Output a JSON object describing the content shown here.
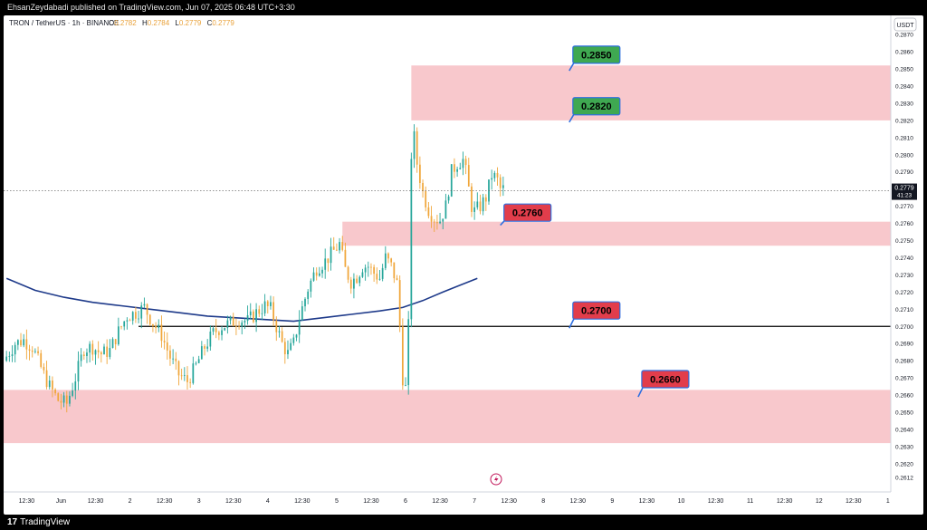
{
  "header": {
    "published_by": "EhsanZeydabadi published on TradingView.com, Jun 07, 2025 06:48 UTC+3:30"
  },
  "footer": {
    "brand": "TradingView"
  },
  "legend": {
    "symbol": "TRON / TetherUS · 1h · BINANCE",
    "ohlc": [
      {
        "key": "O",
        "value": "0.2782"
      },
      {
        "key": "H",
        "value": "0.2784"
      },
      {
        "key": "L",
        "value": "0.2779"
      },
      {
        "key": "C",
        "value": "0.2779"
      }
    ]
  },
  "colors": {
    "up": "#26a69a",
    "down": "#f0a63a",
    "ma": "#1e3a8a",
    "zone": "#f8c8cc",
    "green_label": "#3fa851",
    "red_label": "#e23d4b",
    "arrow": "#2f6fe0",
    "line": "#000000"
  },
  "chart_data": {
    "type": "candlestick",
    "currency": "USDT",
    "current_price": "0.2779",
    "countdown": "41:23",
    "ylim": [
      0.2612,
      0.2878
    ],
    "y_ticks": [
      "0.2870",
      "0.2860",
      "0.2850",
      "0.2840",
      "0.2830",
      "0.2820",
      "0.2810",
      "0.2800",
      "0.2790",
      "0.2780",
      "0.2770",
      "0.2760",
      "0.2750",
      "0.2740",
      "0.2730",
      "0.2720",
      "0.2710",
      "0.2700",
      "0.2690",
      "0.2680",
      "0.2670",
      "0.2660",
      "0.2650",
      "0.2640",
      "0.2630",
      "0.2620",
      "0.2612"
    ],
    "x_ticks": [
      {
        "label": "12:30",
        "slot": 7
      },
      {
        "label": "Jun",
        "slot": 19
      },
      {
        "label": "12:30",
        "slot": 31
      },
      {
        "label": "2",
        "slot": 43
      },
      {
        "label": "12:30",
        "slot": 55
      },
      {
        "label": "3",
        "slot": 67
      },
      {
        "label": "12:30",
        "slot": 79
      },
      {
        "label": "4",
        "slot": 91
      },
      {
        "label": "12:30",
        "slot": 103
      },
      {
        "label": "5",
        "slot": 115
      },
      {
        "label": "12:30",
        "slot": 127
      },
      {
        "label": "6",
        "slot": 139
      },
      {
        "label": "12:30",
        "slot": 151
      },
      {
        "label": "7",
        "slot": 163
      },
      {
        "label": "12:30",
        "slot": 175
      },
      {
        "label": "8",
        "slot": 187
      },
      {
        "label": "12:30",
        "slot": 199
      },
      {
        "label": "9",
        "slot": 211
      },
      {
        "label": "12:30",
        "slot": 223
      },
      {
        "label": "10",
        "slot": 235
      },
      {
        "label": "12:30",
        "slot": 247
      },
      {
        "label": "11",
        "slot": 259
      },
      {
        "label": "12:30",
        "slot": 271
      },
      {
        "label": "12",
        "slot": 283
      },
      {
        "label": "12:30",
        "slot": 295
      },
      {
        "label": "1",
        "slot": 307
      }
    ],
    "slot_range": [
      -1,
      308
    ],
    "zones": [
      {
        "name": "top-resistance-zone",
        "from": 0.282,
        "to": 0.2852,
        "start_slot": 141,
        "end_slot": 308
      },
      {
        "name": "mid-zone",
        "from": 0.2747,
        "to": 0.2761,
        "start_slot": 117,
        "end_slot": 308
      },
      {
        "name": "bottom-support-zone",
        "from": 0.2632,
        "to": 0.2663,
        "start_slot": -1,
        "end_slot": 308
      }
    ],
    "levels": [
      {
        "name": "support-line-0-2700",
        "value": 0.27,
        "start_slot": 46,
        "end_slot": 308
      }
    ],
    "labels": [
      {
        "text": "0.2850",
        "color": "green",
        "price": 0.285,
        "slot": 196,
        "label_price": 0.2858
      },
      {
        "text": "0.2820",
        "color": "green",
        "price": 0.282,
        "slot": 196,
        "label_price": 0.2828
      },
      {
        "text": "0.2760",
        "color": "red",
        "price": 0.276,
        "slot": 172,
        "label_price": 0.2766
      },
      {
        "text": "0.2700",
        "color": "red",
        "price": 0.27,
        "slot": 196,
        "label_price": 0.2709
      },
      {
        "text": "0.2660",
        "color": "red",
        "price": 0.266,
        "slot": 220,
        "label_price": 0.2669
      }
    ],
    "moving_average": [
      {
        "slot": 0,
        "value": 0.2728
      },
      {
        "slot": 10,
        "value": 0.2721
      },
      {
        "slot": 20,
        "value": 0.2717
      },
      {
        "slot": 30,
        "value": 0.2714
      },
      {
        "slot": 40,
        "value": 0.2712
      },
      {
        "slot": 50,
        "value": 0.271
      },
      {
        "slot": 60,
        "value": 0.2708
      },
      {
        "slot": 70,
        "value": 0.2706
      },
      {
        "slot": 80,
        "value": 0.2705
      },
      {
        "slot": 90,
        "value": 0.2704
      },
      {
        "slot": 100,
        "value": 0.2703
      },
      {
        "slot": 110,
        "value": 0.2705
      },
      {
        "slot": 120,
        "value": 0.2707
      },
      {
        "slot": 130,
        "value": 0.2709
      },
      {
        "slot": 138,
        "value": 0.2711
      },
      {
        "slot": 145,
        "value": 0.2715
      },
      {
        "slot": 152,
        "value": 0.272
      },
      {
        "slot": 158,
        "value": 0.2724
      },
      {
        "slot": 164,
        "value": 0.2728
      }
    ],
    "anchors": [
      [
        0,
        0.268
      ],
      [
        4,
        0.269
      ],
      [
        7,
        0.2692
      ],
      [
        10,
        0.2688
      ],
      [
        14,
        0.2672
      ],
      [
        16,
        0.2665
      ],
      [
        19,
        0.2657
      ],
      [
        22,
        0.2655
      ],
      [
        25,
        0.267
      ],
      [
        28,
        0.2687
      ],
      [
        31,
        0.2688
      ],
      [
        34,
        0.2684
      ],
      [
        37,
        0.2686
      ],
      [
        40,
        0.2697
      ],
      [
        43,
        0.2706
      ],
      [
        46,
        0.2708
      ],
      [
        49,
        0.2711
      ],
      [
        52,
        0.2702
      ],
      [
        55,
        0.2695
      ],
      [
        58,
        0.2682
      ],
      [
        61,
        0.2672
      ],
      [
        64,
        0.2668
      ],
      [
        67,
        0.2677
      ],
      [
        70,
        0.2688
      ],
      [
        73,
        0.2696
      ],
      [
        76,
        0.27
      ],
      [
        79,
        0.2702
      ],
      [
        82,
        0.2704
      ],
      [
        85,
        0.2703
      ],
      [
        88,
        0.2708
      ],
      [
        91,
        0.2712
      ],
      [
        93,
        0.271
      ],
      [
        95,
        0.27
      ],
      [
        97,
        0.269
      ],
      [
        99,
        0.2684
      ],
      [
        101,
        0.269
      ],
      [
        103,
        0.2705
      ],
      [
        106,
        0.2722
      ],
      [
        109,
        0.2734
      ],
      [
        112,
        0.2738
      ],
      [
        115,
        0.2744
      ],
      [
        117,
        0.2748
      ],
      [
        119,
        0.2733
      ],
      [
        121,
        0.2726
      ],
      [
        123,
        0.2729
      ],
      [
        125,
        0.2735
      ],
      [
        127,
        0.2735
      ],
      [
        129,
        0.2731
      ],
      [
        131,
        0.2728
      ],
      [
        133,
        0.274
      ],
      [
        135,
        0.2735
      ],
      [
        137,
        0.2725
      ],
      [
        138,
        0.27
      ],
      [
        139,
        0.267
      ],
      [
        140,
        0.2664
      ],
      [
        141,
        0.27
      ],
      [
        142,
        0.28
      ],
      [
        143,
        0.281
      ],
      [
        144,
        0.2795
      ],
      [
        146,
        0.2778
      ],
      [
        148,
        0.2768
      ],
      [
        150,
        0.2763
      ],
      [
        152,
        0.2762
      ],
      [
        154,
        0.277
      ],
      [
        156,
        0.279
      ],
      [
        158,
        0.2795
      ],
      [
        160,
        0.2797
      ],
      [
        161,
        0.279
      ],
      [
        162,
        0.278
      ],
      [
        163,
        0.277
      ],
      [
        164,
        0.2767
      ],
      [
        166,
        0.277
      ],
      [
        168,
        0.2775
      ],
      [
        170,
        0.2788
      ],
      [
        171,
        0.2787
      ],
      [
        172,
        0.2785
      ],
      [
        173,
        0.278
      ]
    ],
    "candle_slot_range": [
      0,
      173
    ]
  }
}
